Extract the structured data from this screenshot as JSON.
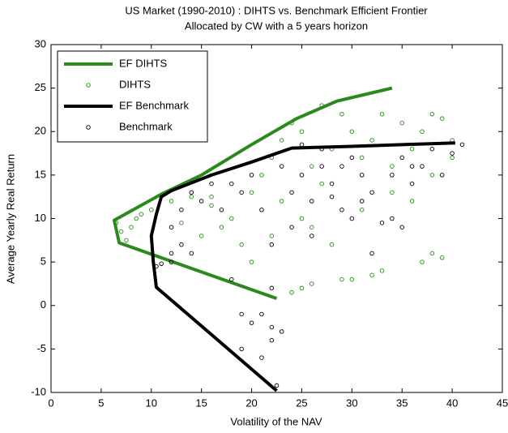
{
  "chart_data": {
    "type": "scatter",
    "title": "US Market (1990-2010) : DIHTS vs. Benchmark Efficient Frontier",
    "subtitle": "Allocated by CW with a 5 years horizon",
    "x_label": "Volatility of the NAV",
    "y_label": "Average Yearly Real Return",
    "xlim": [
      0,
      45
    ],
    "xticks": [
      0,
      5,
      10,
      15,
      20,
      25,
      30,
      35,
      40,
      45
    ],
    "ylim": [
      -10,
      30
    ],
    "yticks": [
      -10,
      -5,
      0,
      5,
      10,
      15,
      20,
      25,
      30
    ],
    "grid": false,
    "legend": "upper left",
    "series": [
      {
        "name": "EF DIHTS",
        "color": "#2a8a1c",
        "mode": "lines",
        "x": [
          22.5,
          6.8,
          6.3,
          11,
          15,
          20,
          24.5,
          28.5,
          34
        ],
        "y": [
          0.8,
          7.2,
          9.8,
          12.8,
          15,
          18.5,
          21.5,
          23.5,
          25
        ]
      },
      {
        "name": "DIHTS",
        "color": "#2a8a1c",
        "mode": "markers",
        "x": [
          6.5,
          7,
          8,
          8.5,
          7.5,
          9,
          10,
          12,
          14,
          16,
          17,
          15,
          18,
          20,
          21,
          22,
          23,
          24,
          25,
          26,
          27,
          28,
          29,
          30,
          31,
          32,
          33,
          34,
          35,
          36,
          37,
          38,
          39,
          40,
          24,
          25,
          26,
          29,
          30,
          32,
          33,
          37,
          38,
          39,
          20,
          22,
          25,
          28,
          31,
          34,
          36,
          38,
          40,
          23,
          26,
          19,
          13,
          16,
          27
        ],
        "y": [
          9.5,
          8.5,
          9,
          10,
          7.5,
          10.5,
          11,
          12,
          12.5,
          11.5,
          9,
          8,
          10,
          13,
          15,
          17,
          19,
          21,
          20,
          16,
          14,
          18,
          22,
          20,
          17,
          19,
          22,
          16,
          21,
          18,
          20,
          22,
          21.5,
          19,
          1.5,
          2,
          2.5,
          3,
          3,
          3.5,
          4,
          5,
          6,
          5.5,
          5,
          8,
          10,
          7,
          11,
          13,
          12,
          15,
          17,
          12,
          9,
          7,
          9.5,
          12.5,
          23
        ]
      },
      {
        "name": "EF Benchmark",
        "color": "#000000",
        "mode": "lines",
        "x": [
          22.5,
          10.5,
          10.2,
          10,
          10.5,
          11,
          12,
          16,
          20,
          24,
          30,
          35,
          40.3
        ],
        "y": [
          -9.8,
          2.1,
          5,
          8,
          10.5,
          12.5,
          13.2,
          15,
          16.5,
          18.1,
          18.3,
          18.5,
          18.7
        ]
      },
      {
        "name": "Benchmark",
        "color": "#000000",
        "mode": "markers",
        "x": [
          22.5,
          21,
          22,
          23,
          20,
          21,
          22,
          19,
          10.5,
          11,
          12,
          13,
          14,
          12,
          13,
          15,
          16,
          18,
          17,
          19,
          20,
          21,
          22,
          23,
          24,
          25,
          26,
          27,
          28,
          29,
          30,
          31,
          32,
          33,
          34,
          35,
          36,
          37,
          38,
          39,
          40,
          41,
          24,
          26,
          28,
          30,
          32,
          34,
          36,
          18,
          19,
          22,
          12,
          14,
          25,
          27,
          29,
          31,
          35
        ],
        "y": [
          -9.2,
          -6,
          -4,
          -3,
          -2,
          -1,
          -2.5,
          -5,
          4.5,
          4.8,
          6,
          7,
          6,
          9,
          11,
          12,
          14,
          14,
          11,
          13,
          15,
          11,
          7,
          16,
          13,
          15,
          12,
          16,
          14,
          11,
          17,
          15,
          13,
          9.5,
          15,
          17,
          14,
          16,
          18,
          15,
          17.5,
          18.5,
          9,
          8,
          12.5,
          10,
          6,
          10,
          16,
          3,
          -1,
          2,
          5,
          13,
          18.5,
          18,
          16,
          12,
          9
        ]
      }
    ]
  }
}
